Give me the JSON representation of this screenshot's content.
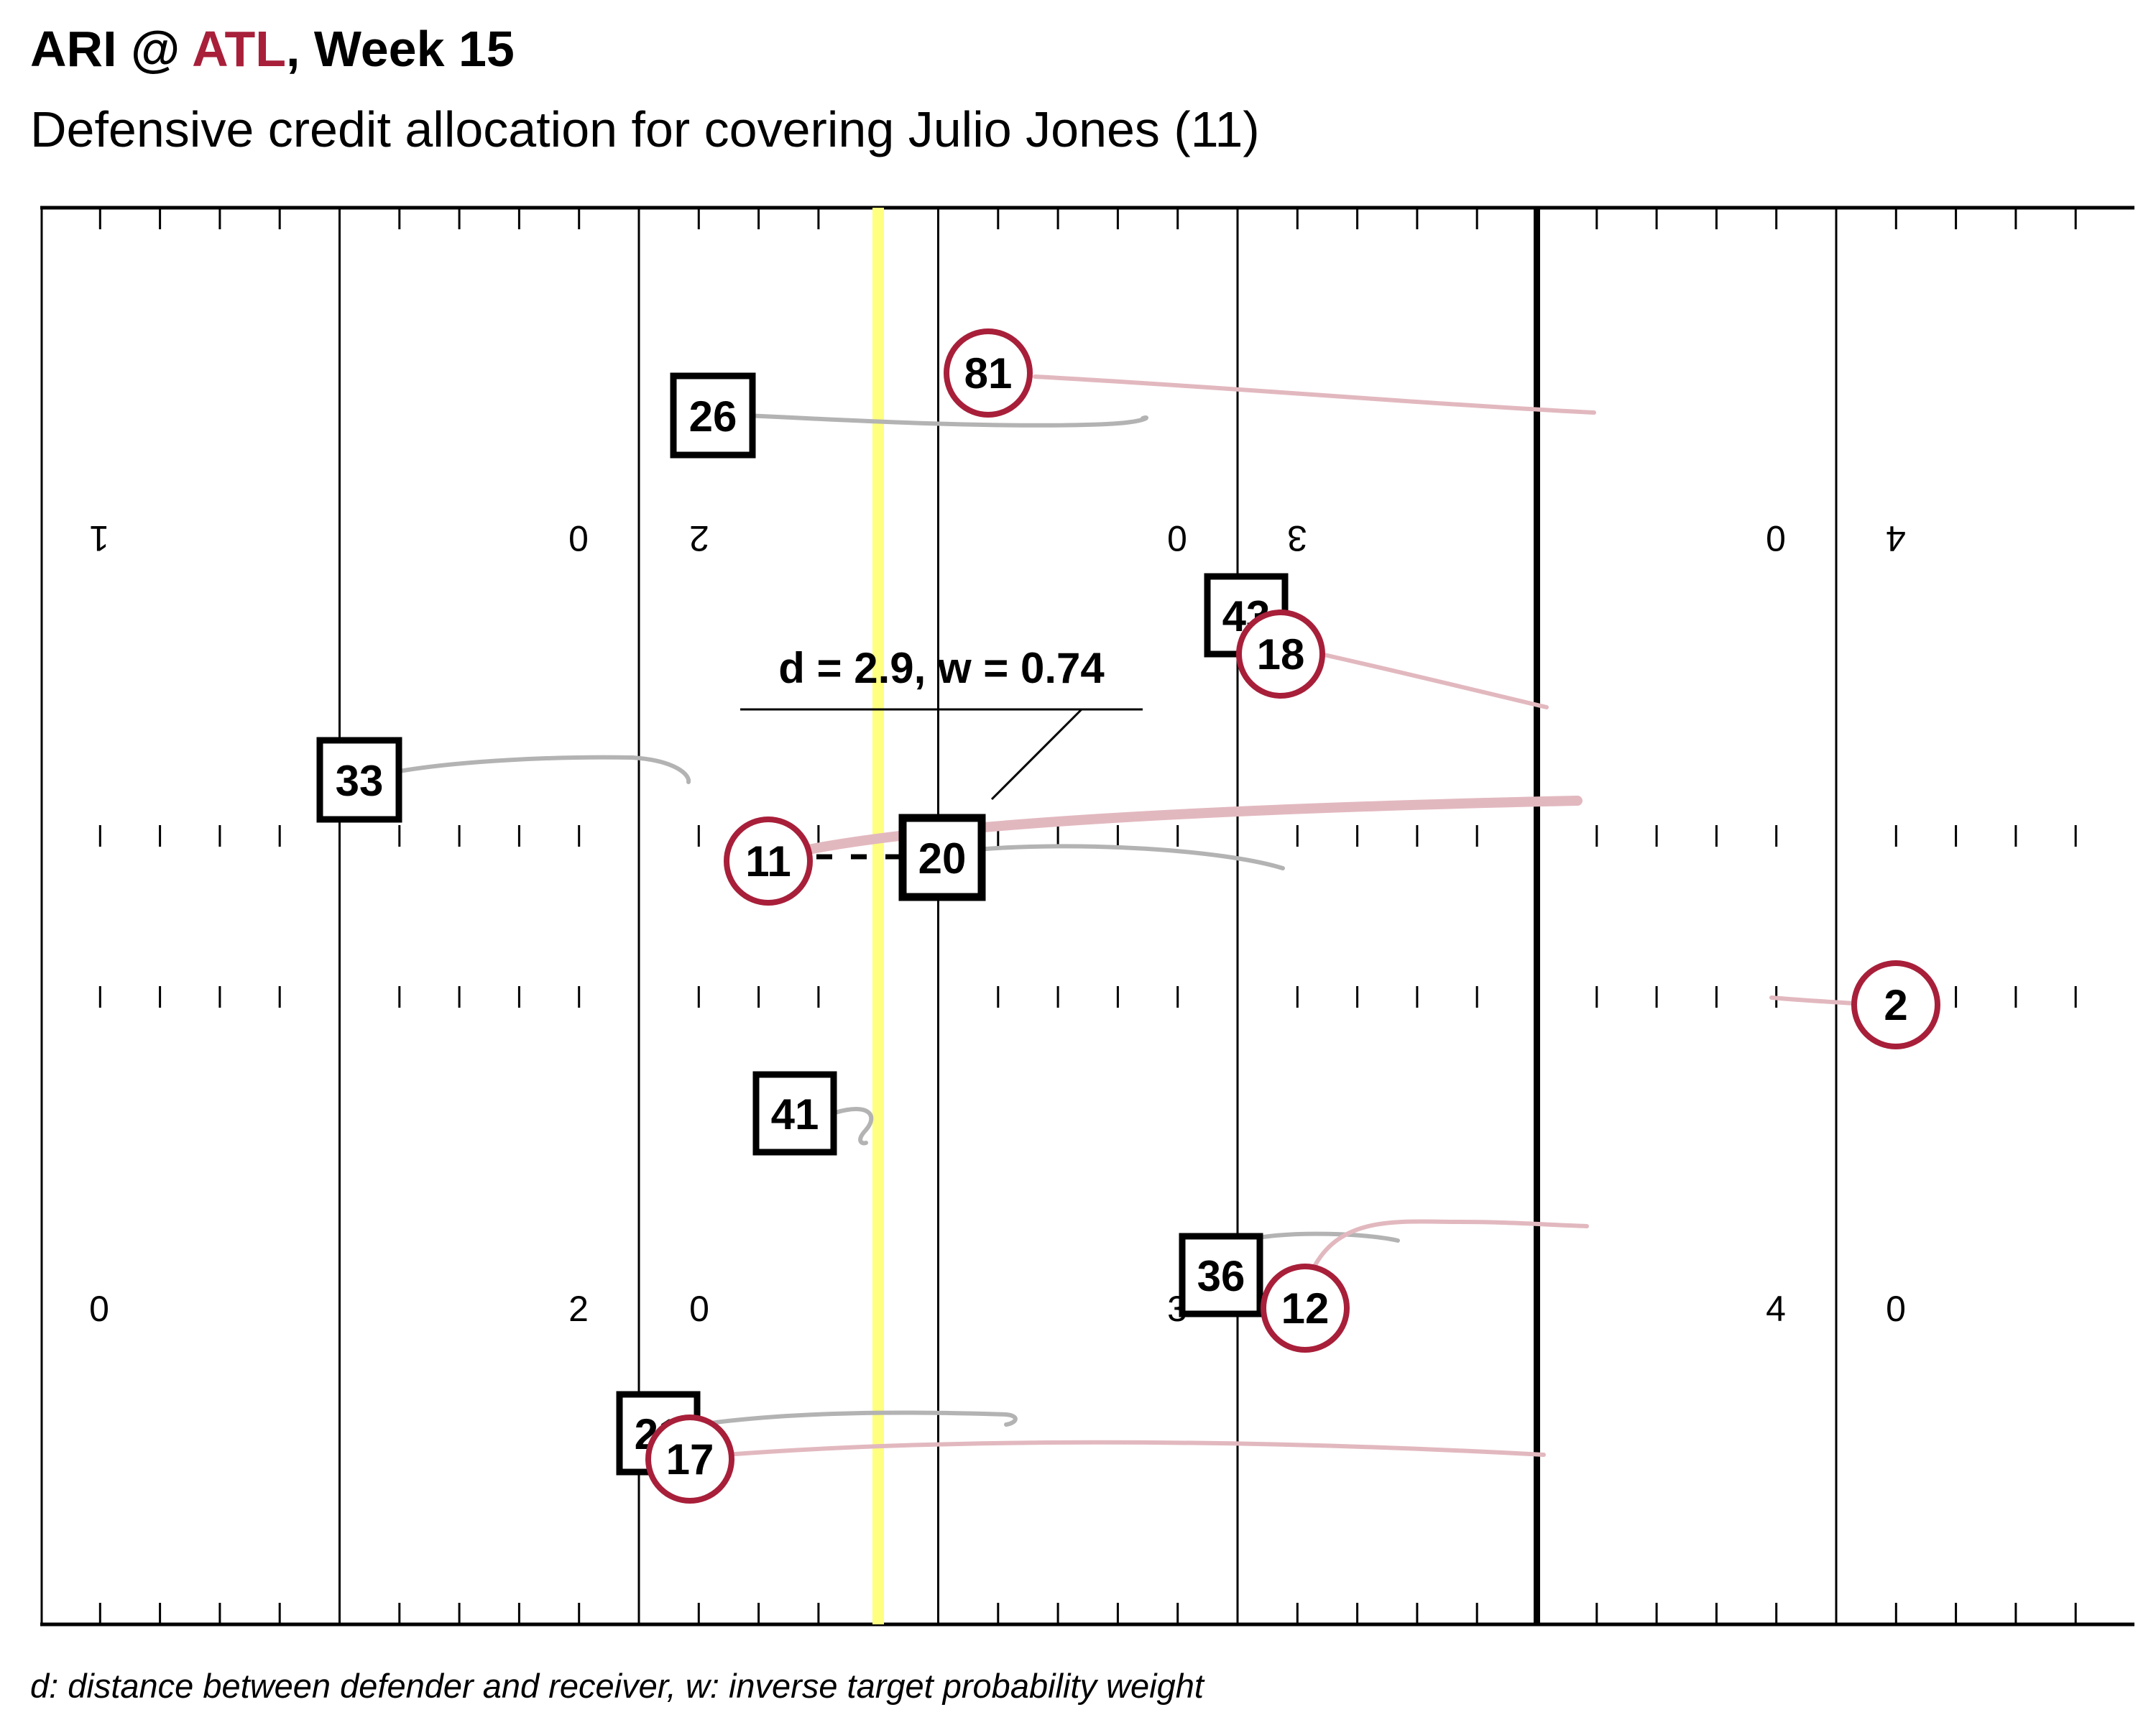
{
  "header": {
    "away_team": "ARI",
    "at": "@",
    "home_team": "ATL",
    "week": ", Week 15",
    "subtitle": "Defensive credit allocation for covering Julio Jones (11)"
  },
  "footnote": "d: distance between defender and receiver, w: inverse target probability weight",
  "annotation": {
    "text": "d = 2.9, w = 0.74"
  },
  "colors": {
    "offense": "#a81f3a",
    "offense_track": "#e2b8bf",
    "defense": "#000000",
    "defense_track": "#b3b3b3",
    "line_of_scrimmage": "#ffff80"
  },
  "yard_numbers_top": [
    "1",
    "0",
    "2",
    "0",
    "3",
    "0",
    "0",
    "4"
  ],
  "yard_numbers_bottom": [
    "0",
    "2",
    "0",
    "3",
    "4",
    "0"
  ],
  "offense_players": [
    {
      "number": "81"
    },
    {
      "number": "18"
    },
    {
      "number": "11"
    },
    {
      "number": "2"
    },
    {
      "number": "12"
    },
    {
      "number": "17"
    }
  ],
  "defense_players": [
    {
      "number": "26"
    },
    {
      "number": "43"
    },
    {
      "number": "33"
    },
    {
      "number": "20"
    },
    {
      "number": "41"
    },
    {
      "number": "36"
    },
    {
      "number": "21"
    }
  ]
}
